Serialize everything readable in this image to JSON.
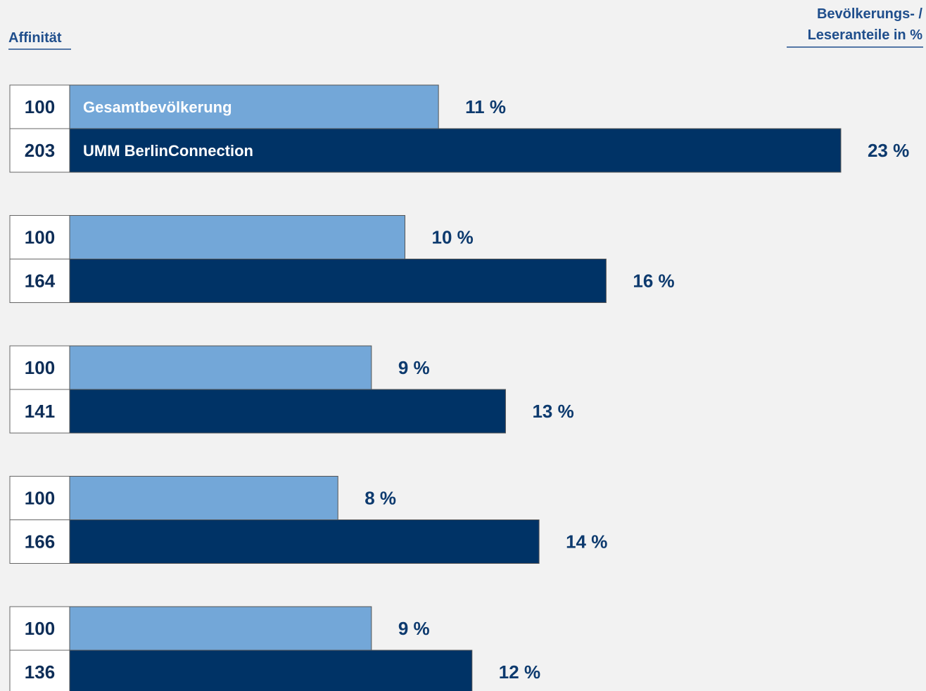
{
  "header": {
    "left": "Affinität",
    "right_line1": "Bevölkerungs- /",
    "right_line2": "Leseranteile in %"
  },
  "chart_data": {
    "type": "bar",
    "orientation": "horizontal",
    "series": [
      {
        "name": "Gesamtbevölkerung",
        "values": [
          11,
          10,
          9,
          8,
          9
        ],
        "affinity": [
          100,
          100,
          100,
          100,
          100
        ]
      },
      {
        "name": "UMM BerlinConnection",
        "values": [
          23,
          16,
          13,
          14,
          12
        ],
        "affinity": [
          203,
          164,
          141,
          166,
          136
        ]
      }
    ],
    "value_unit": "%",
    "colors": {
      "light": "#73a7d8",
      "dark": "#003366"
    }
  }
}
